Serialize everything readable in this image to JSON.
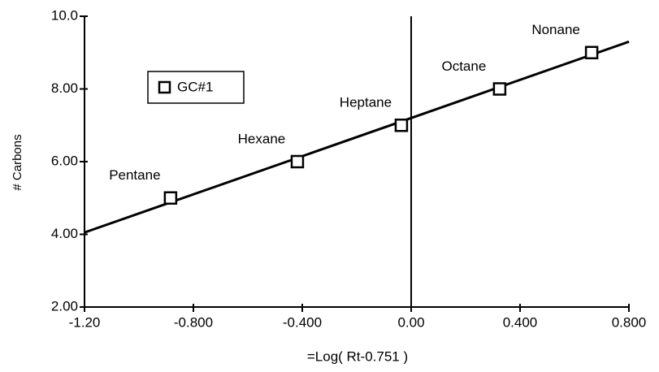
{
  "chart_data": {
    "type": "scatter",
    "x_label": "=Log( Rt-0.751 )",
    "y_label": "# Carbons",
    "xlim": [
      -1.2,
      0.8
    ],
    "xticks": [
      {
        "value": -1.2,
        "label": "-1.20"
      },
      {
        "value": -0.8,
        "label": "-0.800"
      },
      {
        "value": -0.4,
        "label": "-0.400"
      },
      {
        "value": 0,
        "label": "0.00"
      },
      {
        "value": 0.4,
        "label": "0.400"
      },
      {
        "value": 0.8,
        "label": "0.800"
      }
    ],
    "ylim": [
      2,
      10
    ],
    "yticks": [
      {
        "value": 2,
        "label": "2.00"
      },
      {
        "value": 4,
        "label": "4.00"
      },
      {
        "value": 6,
        "label": "6.00"
      },
      {
        "value": 8,
        "label": "8.00"
      },
      {
        "value": 10,
        "label": "10.0"
      }
    ],
    "series": [
      {
        "name": "GC#1",
        "color": "#000000",
        "x": [
          -0.884,
          -0.418,
          -0.036,
          0.325,
          0.663
        ],
        "values": [
          5,
          6,
          7,
          8,
          9
        ],
        "point_labels": [
          "Pentane",
          "Hexane",
          "Heptane",
          "Octane",
          "Nonane"
        ]
      }
    ],
    "trendline": {
      "x": [
        -1.2,
        0.8
      ],
      "values": [
        4.05,
        9.3
      ]
    },
    "vline": 0,
    "legend": "upper-left"
  }
}
